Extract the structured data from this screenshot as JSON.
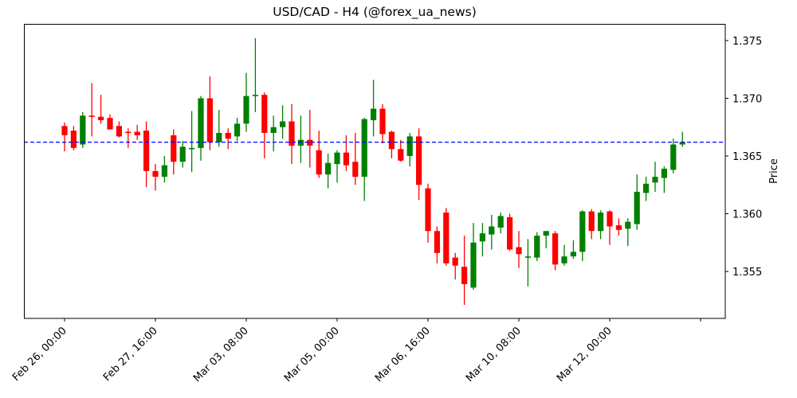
{
  "chart_data": {
    "type": "candlestick",
    "title": "USD/CAD - H4 (@forex_ua_news)",
    "xlabel": "",
    "ylabel": "Price",
    "y_axis_position": "right",
    "ylim": [
      1.3512,
      1.3766
    ],
    "yticks": [
      1.355,
      1.36,
      1.365,
      1.37,
      1.375
    ],
    "ytick_labels": [
      "1.355",
      "1.360",
      "1.365",
      "1.370",
      "1.375"
    ],
    "xtick_labels": [
      "Feb 26, 00:00",
      "Feb 27, 16:00",
      "Mar 03, 08:00",
      "Mar 05, 00:00",
      "Mar 06, 16:00",
      "Mar 10, 08:00",
      "Mar 12, 00:00",
      ""
    ],
    "xtick_indices": [
      0,
      10,
      20,
      30,
      40,
      50,
      60,
      70
    ],
    "grid": false,
    "colors": {
      "up": "#008000",
      "down": "#ff0000",
      "reference_line": "#0000ff"
    },
    "reference_line": {
      "value": 1.3662,
      "style": "dashed",
      "color": "#0000ff"
    },
    "candles": [
      {
        "o": 1.3676,
        "h": 1.3679,
        "l": 1.3654,
        "c": 1.3668
      },
      {
        "o": 1.3672,
        "h": 1.3676,
        "l": 1.3655,
        "c": 1.3657
      },
      {
        "o": 1.366,
        "h": 1.3688,
        "l": 1.3657,
        "c": 1.3685
      },
      {
        "o": 1.3685,
        "h": 1.3713,
        "l": 1.3667,
        "c": 1.3684
      },
      {
        "o": 1.3684,
        "h": 1.3703,
        "l": 1.3678,
        "c": 1.3681
      },
      {
        "o": 1.3683,
        "h": 1.3686,
        "l": 1.3673,
        "c": 1.3673
      },
      {
        "o": 1.3676,
        "h": 1.368,
        "l": 1.3666,
        "c": 1.3667
      },
      {
        "o": 1.3671,
        "h": 1.3674,
        "l": 1.3657,
        "c": 1.367
      },
      {
        "o": 1.3671,
        "h": 1.3677,
        "l": 1.3664,
        "c": 1.3668
      },
      {
        "o": 1.3672,
        "h": 1.368,
        "l": 1.3623,
        "c": 1.3637
      },
      {
        "o": 1.3637,
        "h": 1.3643,
        "l": 1.362,
        "c": 1.3632
      },
      {
        "o": 1.3632,
        "h": 1.365,
        "l": 1.3627,
        "c": 1.3642
      },
      {
        "o": 1.3668,
        "h": 1.3673,
        "l": 1.3634,
        "c": 1.3645
      },
      {
        "o": 1.3645,
        "h": 1.3663,
        "l": 1.364,
        "c": 1.3658
      },
      {
        "o": 1.3657,
        "h": 1.3689,
        "l": 1.3636,
        "c": 1.3657
      },
      {
        "o": 1.3657,
        "h": 1.3702,
        "l": 1.3646,
        "c": 1.37
      },
      {
        "o": 1.37,
        "h": 1.3719,
        "l": 1.3655,
        "c": 1.3662
      },
      {
        "o": 1.3662,
        "h": 1.369,
        "l": 1.3658,
        "c": 1.367
      },
      {
        "o": 1.367,
        "h": 1.3674,
        "l": 1.3656,
        "c": 1.3665
      },
      {
        "o": 1.3667,
        "h": 1.3683,
        "l": 1.3663,
        "c": 1.3678
      },
      {
        "o": 1.3678,
        "h": 1.3722,
        "l": 1.3671,
        "c": 1.3702
      },
      {
        "o": 1.3703,
        "h": 1.3752,
        "l": 1.3688,
        "c": 1.3703
      },
      {
        "o": 1.3703,
        "h": 1.3705,
        "l": 1.3648,
        "c": 1.367
      },
      {
        "o": 1.367,
        "h": 1.3685,
        "l": 1.3654,
        "c": 1.3675
      },
      {
        "o": 1.3675,
        "h": 1.3694,
        "l": 1.3665,
        "c": 1.368
      },
      {
        "o": 1.368,
        "h": 1.3695,
        "l": 1.3643,
        "c": 1.3659
      },
      {
        "o": 1.3659,
        "h": 1.3685,
        "l": 1.3644,
        "c": 1.3664
      },
      {
        "o": 1.3664,
        "h": 1.369,
        "l": 1.364,
        "c": 1.3659
      },
      {
        "o": 1.3655,
        "h": 1.3672,
        "l": 1.3631,
        "c": 1.3634
      },
      {
        "o": 1.3634,
        "h": 1.3652,
        "l": 1.3622,
        "c": 1.3644
      },
      {
        "o": 1.3643,
        "h": 1.3655,
        "l": 1.3627,
        "c": 1.3653
      },
      {
        "o": 1.3653,
        "h": 1.3668,
        "l": 1.3637,
        "c": 1.3642
      },
      {
        "o": 1.3645,
        "h": 1.367,
        "l": 1.3625,
        "c": 1.3632
      },
      {
        "o": 1.3632,
        "h": 1.3683,
        "l": 1.3611,
        "c": 1.3682
      },
      {
        "o": 1.3681,
        "h": 1.3716,
        "l": 1.3667,
        "c": 1.3691
      },
      {
        "o": 1.3691,
        "h": 1.3695,
        "l": 1.3661,
        "c": 1.3669
      },
      {
        "o": 1.3671,
        "h": 1.3672,
        "l": 1.3648,
        "c": 1.3656
      },
      {
        "o": 1.3656,
        "h": 1.3664,
        "l": 1.3645,
        "c": 1.3646
      },
      {
        "o": 1.365,
        "h": 1.367,
        "l": 1.3641,
        "c": 1.3667
      },
      {
        "o": 1.3667,
        "h": 1.3674,
        "l": 1.3612,
        "c": 1.3625
      },
      {
        "o": 1.3622,
        "h": 1.3626,
        "l": 1.3575,
        "c": 1.3585
      },
      {
        "o": 1.3585,
        "h": 1.3589,
        "l": 1.3557,
        "c": 1.3566
      },
      {
        "o": 1.3601,
        "h": 1.3605,
        "l": 1.3555,
        "c": 1.3557
      },
      {
        "o": 1.3562,
        "h": 1.3566,
        "l": 1.3543,
        "c": 1.3555
      },
      {
        "o": 1.3554,
        "h": 1.3581,
        "l": 1.3521,
        "c": 1.3539
      },
      {
        "o": 1.3536,
        "h": 1.3592,
        "l": 1.3534,
        "c": 1.3575
      },
      {
        "o": 1.3576,
        "h": 1.3592,
        "l": 1.3563,
        "c": 1.3583
      },
      {
        "o": 1.3582,
        "h": 1.3599,
        "l": 1.3569,
        "c": 1.3589
      },
      {
        "o": 1.3588,
        "h": 1.3601,
        "l": 1.3583,
        "c": 1.3598
      },
      {
        "o": 1.3597,
        "h": 1.36,
        "l": 1.3568,
        "c": 1.3569
      },
      {
        "o": 1.3571,
        "h": 1.3585,
        "l": 1.3553,
        "c": 1.3565
      },
      {
        "o": 1.3563,
        "h": 1.3578,
        "l": 1.3537,
        "c": 1.3563
      },
      {
        "o": 1.3562,
        "h": 1.3584,
        "l": 1.3559,
        "c": 1.3581
      },
      {
        "o": 1.3581,
        "h": 1.3585,
        "l": 1.357,
        "c": 1.3585
      },
      {
        "o": 1.3583,
        "h": 1.3585,
        "l": 1.3551,
        "c": 1.3556
      },
      {
        "o": 1.3557,
        "h": 1.3573,
        "l": 1.3555,
        "c": 1.3563
      },
      {
        "o": 1.3563,
        "h": 1.3577,
        "l": 1.3561,
        "c": 1.3567
      },
      {
        "o": 1.3567,
        "h": 1.3603,
        "l": 1.3559,
        "c": 1.3602
      },
      {
        "o": 1.3602,
        "h": 1.3604,
        "l": 1.3578,
        "c": 1.3585
      },
      {
        "o": 1.3585,
        "h": 1.3603,
        "l": 1.3578,
        "c": 1.3601
      },
      {
        "o": 1.3602,
        "h": 1.3603,
        "l": 1.3573,
        "c": 1.3589
      },
      {
        "o": 1.359,
        "h": 1.3596,
        "l": 1.3581,
        "c": 1.3586
      },
      {
        "o": 1.3587,
        "h": 1.3596,
        "l": 1.3572,
        "c": 1.3593
      },
      {
        "o": 1.3591,
        "h": 1.3634,
        "l": 1.3586,
        "c": 1.3619
      },
      {
        "o": 1.3618,
        "h": 1.3632,
        "l": 1.3611,
        "c": 1.3626
      },
      {
        "o": 1.3627,
        "h": 1.3645,
        "l": 1.3619,
        "c": 1.3632
      },
      {
        "o": 1.3631,
        "h": 1.3641,
        "l": 1.3618,
        "c": 1.3639
      },
      {
        "o": 1.3638,
        "h": 1.3665,
        "l": 1.3635,
        "c": 1.366
      },
      {
        "o": 1.366,
        "h": 1.3671,
        "l": 1.3658,
        "c": 1.3662
      }
    ]
  }
}
